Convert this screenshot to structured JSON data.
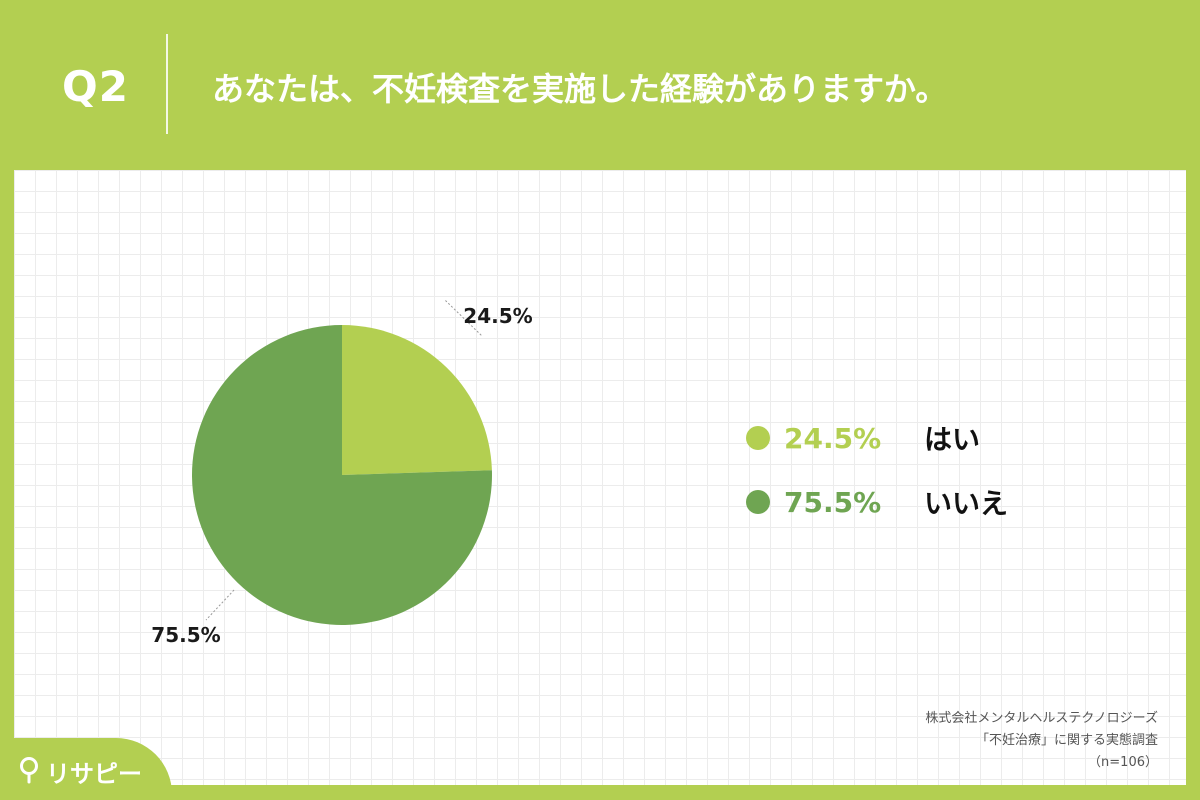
{
  "header": {
    "question_number": "Q2",
    "question_title": "あなたは、不妊検査を実施した経験がありますか。"
  },
  "chart_data": {
    "type": "pie",
    "categories": [
      "はい",
      "いいえ"
    ],
    "values": [
      24.5,
      75.5
    ],
    "value_labels": [
      "24.5%",
      "75.5%"
    ],
    "colors": [
      "#b3cf51",
      "#6fa552"
    ],
    "legend_placement": "right"
  },
  "legend": {
    "items": [
      {
        "percent": "24.5%",
        "label": "はい",
        "color": "#b3cf51"
      },
      {
        "percent": "75.5%",
        "label": "いいえ",
        "color": "#6fa552"
      }
    ]
  },
  "footnote": {
    "line1": "株式会社メンタルヘルステクノロジーズ",
    "line2": "「不妊治療」に関する実態調査",
    "line3": "（n=106）"
  },
  "logo": {
    "text": "リサピー"
  },
  "colors": {
    "background": "#b3cf51",
    "slice_yes": "#b3cf51",
    "slice_no": "#6fa552"
  }
}
